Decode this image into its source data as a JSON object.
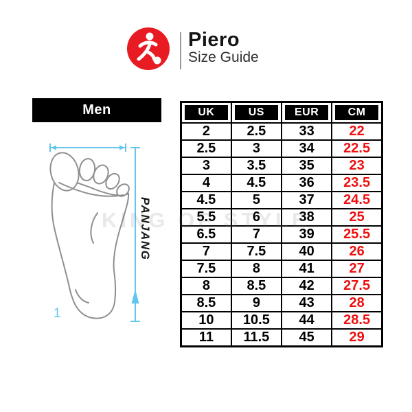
{
  "header": {
    "brand": "Piero",
    "subtitle": "Size Guide",
    "logo_icon": "soccer-player-icon",
    "logo_color": "#e81b23"
  },
  "section": {
    "gender_label": "Men"
  },
  "diagram": {
    "length_label": "PANJANG",
    "marker_label": "1",
    "line_color": "#62c6ee"
  },
  "watermark": "KING OF STYLE",
  "table": {
    "columns": [
      "UK",
      "US",
      "EUR",
      "CM"
    ],
    "cm_text_color": "#ee0f0f",
    "rows": [
      [
        "2",
        "2.5",
        "33",
        "22"
      ],
      [
        "2.5",
        "3",
        "34",
        "22.5"
      ],
      [
        "3",
        "3.5",
        "35",
        "23"
      ],
      [
        "4",
        "4.5",
        "36",
        "23.5"
      ],
      [
        "4.5",
        "5",
        "37",
        "24.5"
      ],
      [
        "5.5",
        "6",
        "38",
        "25"
      ],
      [
        "6.5",
        "7",
        "39",
        "25.5"
      ],
      [
        "7",
        "7.5",
        "40",
        "26"
      ],
      [
        "7.5",
        "8",
        "41",
        "27"
      ],
      [
        "8",
        "8.5",
        "42",
        "27.5"
      ],
      [
        "8.5",
        "9",
        "43",
        "28"
      ],
      [
        "10",
        "10.5",
        "44",
        "28.5"
      ],
      [
        "11",
        "11.5",
        "45",
        "29"
      ]
    ]
  }
}
